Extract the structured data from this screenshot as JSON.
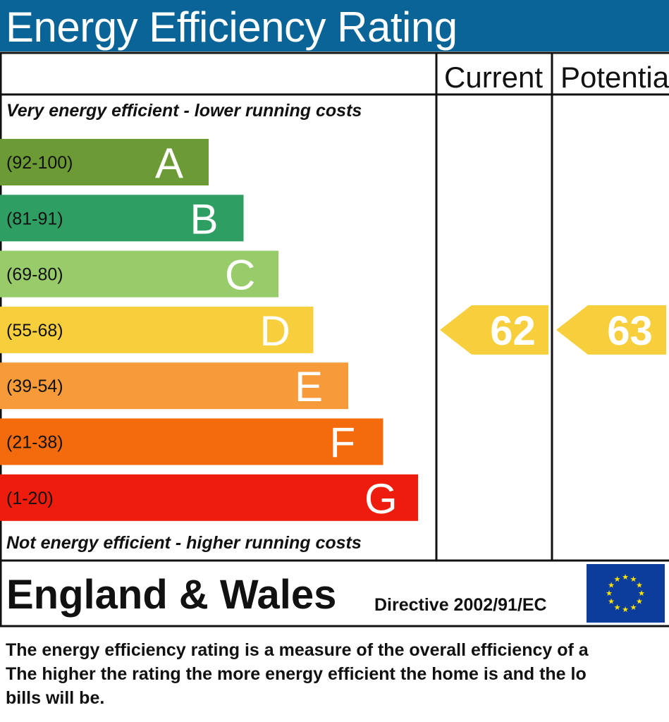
{
  "title": "Energy Efficiency Rating",
  "columns": {
    "current": "Current",
    "potential": "Potential"
  },
  "top_caption": "Very energy efficient - lower running costs",
  "bottom_caption": "Not energy efficient - higher running costs",
  "region": "England & Wales",
  "directive": "Directive 2002/91/EC",
  "eu_flag": {
    "icon": "eu-flag-icon",
    "background": "#0c3c9c",
    "stars": "#ffe600"
  },
  "footer_lines": [
    "The energy efficiency rating is a measure of the overall efficiency of a",
    "The higher the rating the more energy efficient the home is and the lo",
    "bills will be."
  ],
  "chart_data": {
    "type": "bar",
    "title": "Energy Efficiency Rating",
    "bands": [
      {
        "letter": "A",
        "range": "(92-100)",
        "min": 92,
        "max": 100,
        "color": "#6c9b35"
      },
      {
        "letter": "B",
        "range": "(81-91)",
        "min": 81,
        "max": 91,
        "color": "#2f9e63"
      },
      {
        "letter": "C",
        "range": "(69-80)",
        "min": 69,
        "max": 80,
        "color": "#98cc6b"
      },
      {
        "letter": "D",
        "range": "(55-68)",
        "min": 55,
        "max": 68,
        "color": "#f7cf3c"
      },
      {
        "letter": "E",
        "range": "(39-54)",
        "min": 39,
        "max": 54,
        "color": "#f79b3a"
      },
      {
        "letter": "F",
        "range": "(21-38)",
        "min": 21,
        "max": 38,
        "color": "#f46b0d"
      },
      {
        "letter": "G",
        "range": "(1-20)",
        "min": 1,
        "max": 20,
        "color": "#ee1c0c"
      }
    ],
    "current": {
      "value": 62,
      "color": "#f7cf3c"
    },
    "potential": {
      "value": 63,
      "color": "#f7cf3c"
    }
  }
}
